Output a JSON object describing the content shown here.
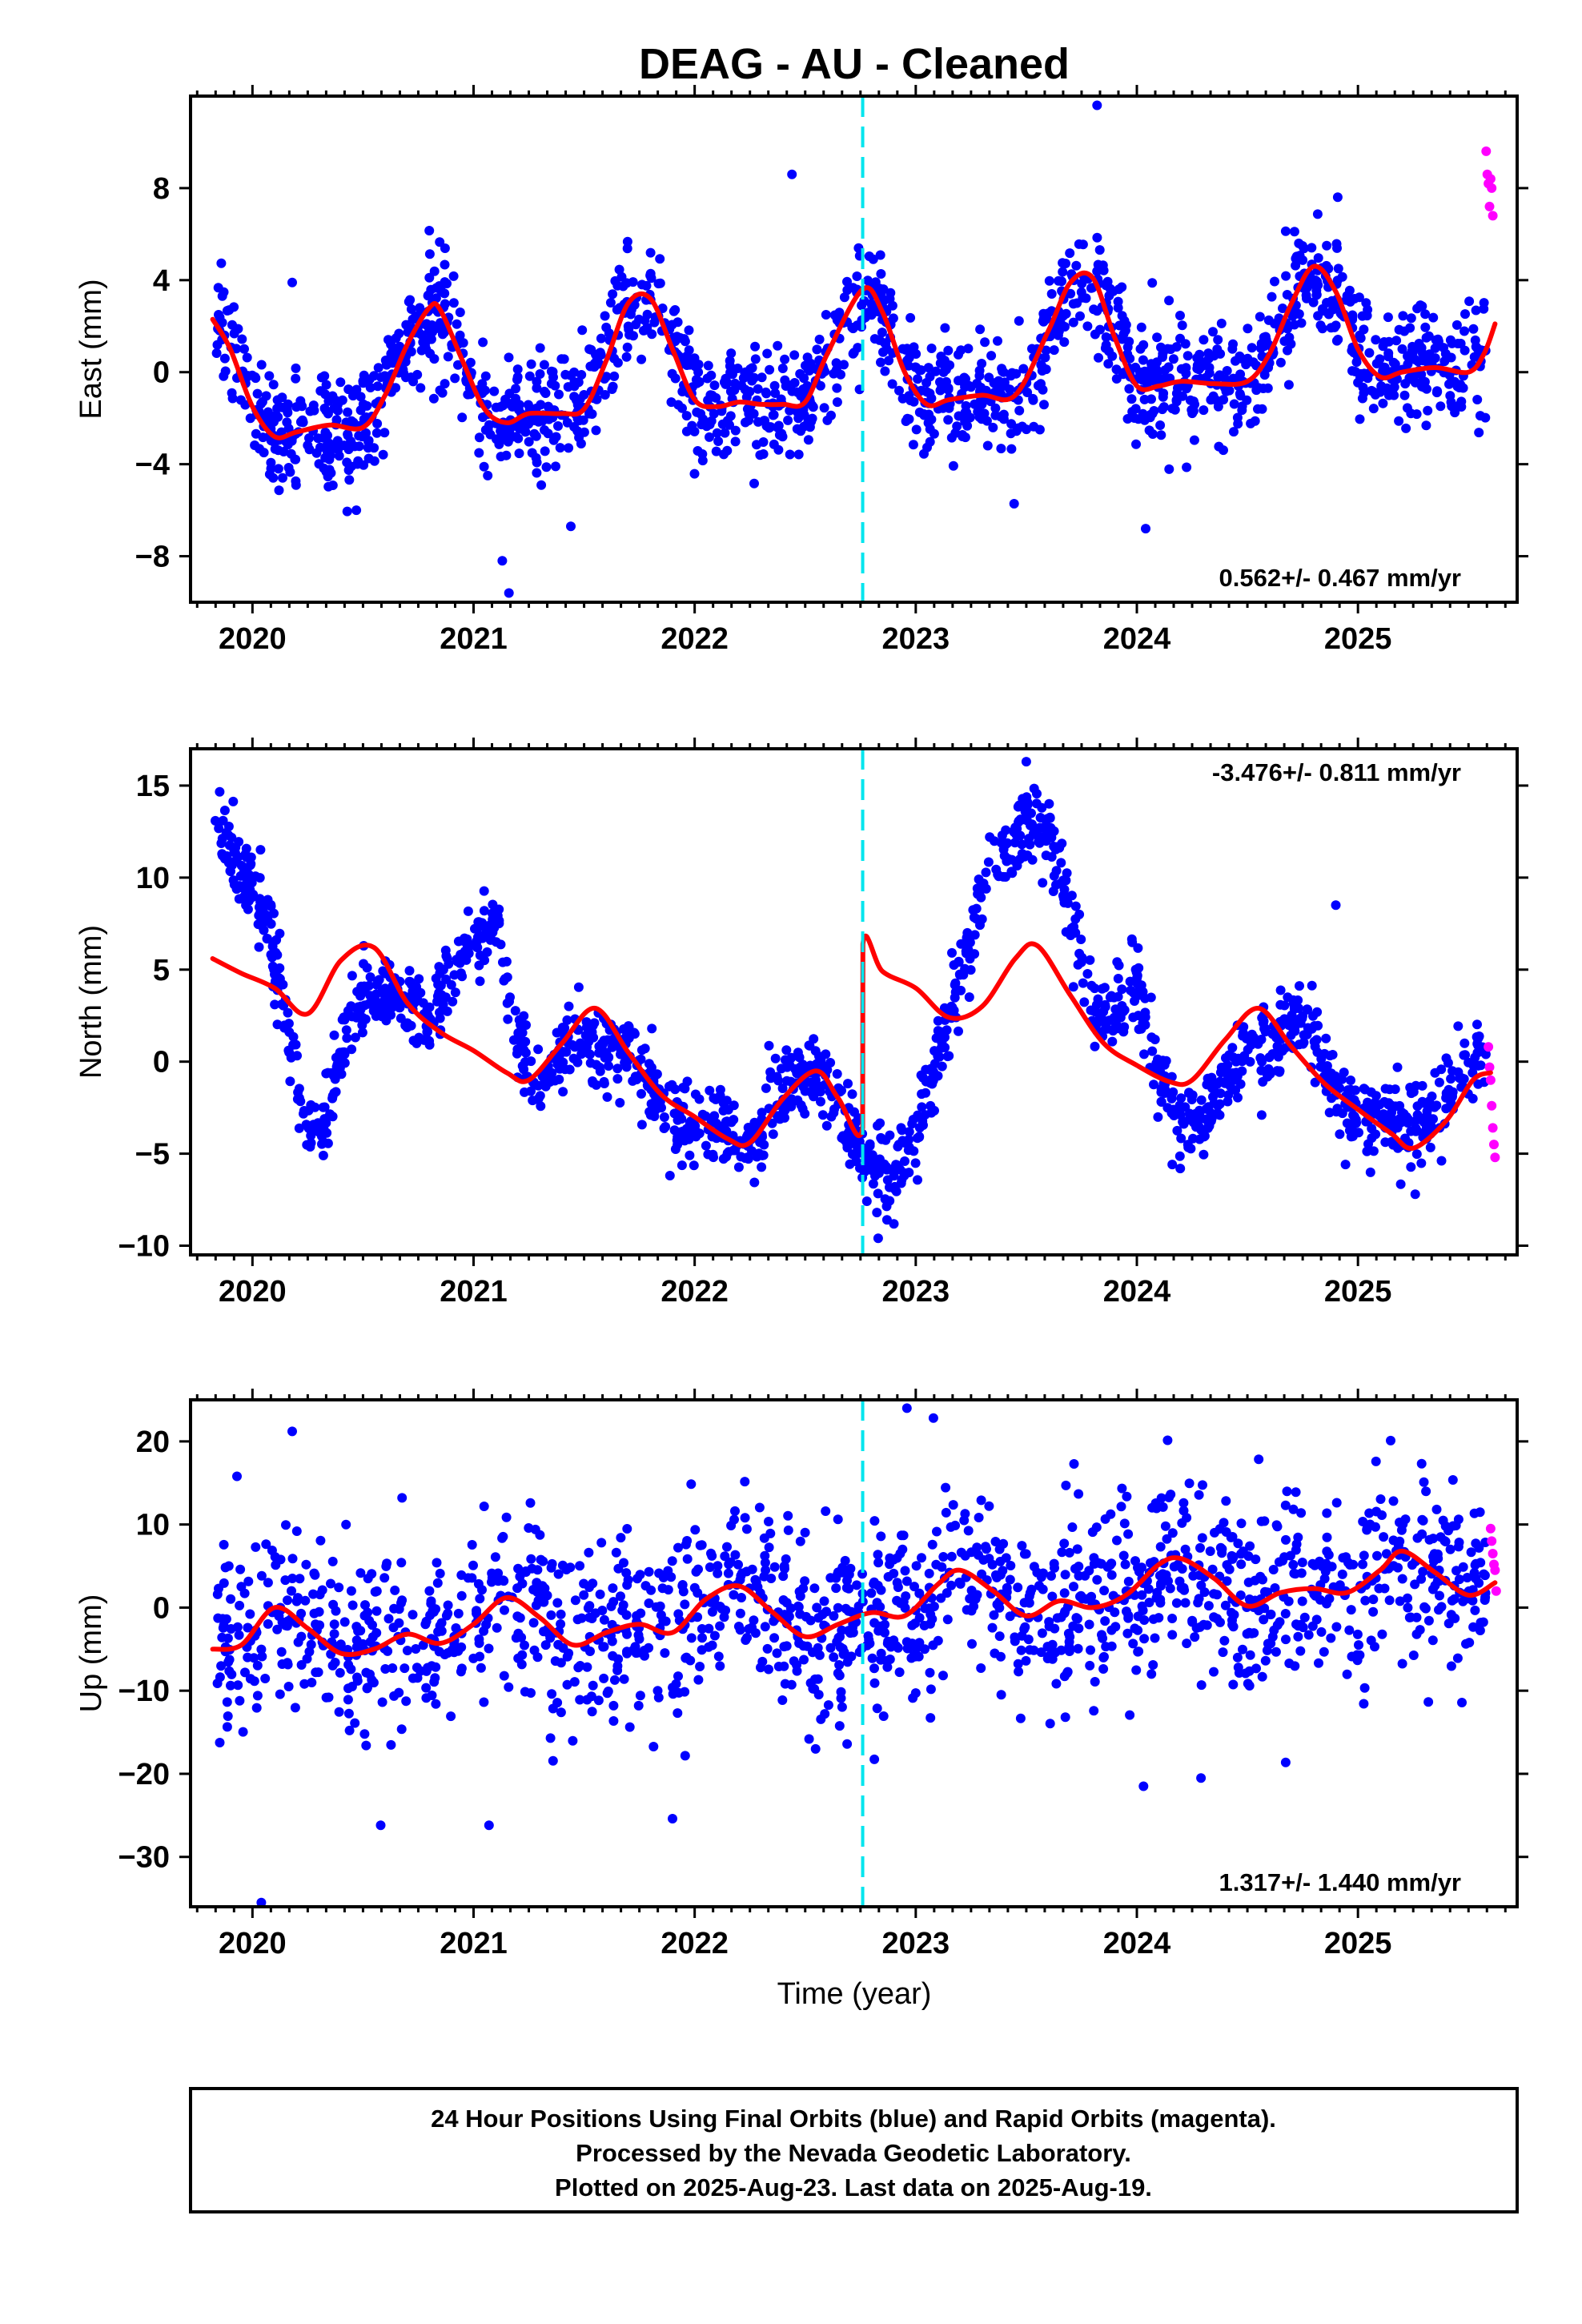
{
  "title": "DEAG  - AU - Cleaned",
  "x_axis_label": "Time (year)",
  "footer": {
    "line1": "24 Hour Positions Using Final Orbits (blue) and Rapid Orbits (magenta).",
    "line2": "Processed by the Nevada Geodetic Laboratory.",
    "line3": "Plotted on 2025-Aug-23. Last data on 2025-Aug-19."
  },
  "colors": {
    "final_orbits": "#0000ff",
    "rapid_orbits": "#ff00ff",
    "model_fit": "#ff0000",
    "event_line": "#00e5ee"
  },
  "chart_data": [
    {
      "type": "scatter",
      "panel": "east",
      "ylabel": "East (mm)",
      "xlim": [
        2019.72,
        2025.72
      ],
      "ylim": [
        -10,
        12
      ],
      "x_ticks": [
        2020,
        2021,
        2022,
        2023,
        2024,
        2025
      ],
      "y_ticks": [
        -8,
        -4,
        0,
        4,
        8
      ],
      "rate_text": "0.562+/- 0.467 mm/yr",
      "event_line_x": 2022.76,
      "model": {
        "x": [
          2019.82,
          2019.9,
          2020.0,
          2020.1,
          2020.2,
          2020.35,
          2020.5,
          2020.6,
          2020.7,
          2020.8,
          2020.85,
          2020.95,
          2021.05,
          2021.15,
          2021.25,
          2021.4,
          2021.5,
          2021.6,
          2021.7,
          2021.8,
          2021.9,
          2022.0,
          2022.1,
          2022.2,
          2022.3,
          2022.4,
          2022.5,
          2022.6,
          2022.76,
          2022.85,
          2022.95,
          2023.05,
          2023.15,
          2023.3,
          2023.45,
          2023.6,
          2023.7,
          2023.8,
          2023.9,
          2024.0,
          2024.1,
          2024.2,
          2024.35,
          2024.5,
          2024.6,
          2024.7,
          2024.8,
          2024.9,
          2025.0,
          2025.1,
          2025.2,
          2025.35,
          2025.5,
          2025.57,
          2025.62
        ],
        "y": [
          2.3,
          1.0,
          -1.5,
          -2.8,
          -2.6,
          -2.3,
          -2.4,
          -1.0,
          1.2,
          2.8,
          2.7,
          0.5,
          -1.6,
          -2.2,
          -1.8,
          -1.8,
          -1.6,
          0.5,
          3.0,
          3.2,
          1.0,
          -1.2,
          -1.5,
          -1.3,
          -1.4,
          -1.4,
          -1.3,
          0.8,
          3.6,
          2.6,
          0.0,
          -1.4,
          -1.2,
          -1.0,
          -1.0,
          1.8,
          3.9,
          4.1,
          1.5,
          -0.6,
          -0.6,
          -0.4,
          -0.5,
          -0.4,
          0.8,
          3.0,
          4.6,
          3.5,
          1.0,
          -0.2,
          0.0,
          0.2,
          0.0,
          0.8,
          2.1
        ]
      },
      "rapid": {
        "x": [
          2025.58,
          2025.585,
          2025.59,
          2025.595,
          2025.6,
          2025.605,
          2025.61
        ],
        "y": [
          9.6,
          8.6,
          8.2,
          7.2,
          8.4,
          8.0,
          6.8
        ]
      },
      "outliers": {
        "x": [
          2022.44,
          2023.82,
          2021.16,
          2021.13,
          2020.18,
          2020.47,
          2024.04,
          2021.44
        ],
        "y": [
          8.6,
          11.6,
          -9.6,
          -8.2,
          3.9,
          -6.0,
          -6.8,
          -6.7
        ]
      },
      "scatter_spread": 1.25,
      "scatter_count": 1700,
      "scatter_seed": 11
    },
    {
      "type": "scatter",
      "panel": "north",
      "ylabel": "North (mm)",
      "xlim": [
        2019.72,
        2025.72
      ],
      "ylim": [
        -10.5,
        17
      ],
      "x_ticks": [
        2020,
        2021,
        2022,
        2023,
        2024,
        2025
      ],
      "y_ticks": [
        -10,
        -5,
        0,
        5,
        10,
        15
      ],
      "rate_text": "-3.476+/- 0.811 mm/yr",
      "event_line_x": 2022.76,
      "model": {
        "x": [
          2019.82,
          2019.95,
          2020.1,
          2020.25,
          2020.4,
          2020.55,
          2020.7,
          2020.85,
          2021.0,
          2021.15,
          2021.25,
          2021.4,
          2021.55,
          2021.7,
          2021.85,
          2022.0,
          2022.15,
          2022.25,
          2022.4,
          2022.55,
          2022.65,
          2022.76,
          2022.761,
          2022.85,
          2023.0,
          2023.15,
          2023.3,
          2023.45,
          2023.55,
          2023.7,
          2023.85,
          2024.0,
          2024.15,
          2024.25,
          2024.4,
          2024.55,
          2024.7,
          2024.85,
          2025.0,
          2025.15,
          2025.25,
          2025.4,
          2025.52,
          2025.6
        ],
        "y": [
          5.6,
          4.8,
          4.0,
          2.6,
          5.5,
          6.2,
          3.2,
          1.6,
          0.6,
          -0.6,
          -1.0,
          1.0,
          2.9,
          0.5,
          -1.8,
          -3.0,
          -4.2,
          -4.4,
          -2.0,
          -0.5,
          -2.0,
          -3.6,
          6.4,
          4.9,
          4.0,
          2.4,
          3.0,
          5.6,
          6.3,
          3.6,
          1.0,
          -0.2,
          -1.1,
          -1.0,
          1.2,
          2.9,
          0.8,
          -1.2,
          -2.6,
          -3.9,
          -4.7,
          -3.2,
          -1.0,
          -0.6
        ]
      },
      "trend": {
        "x": [
          2019.85,
          2019.95,
          2020.05,
          2020.15,
          2020.22,
          2020.3,
          2020.4,
          2020.5,
          2020.6,
          2020.7,
          2020.8,
          2020.9,
          2021.0,
          2021.1,
          2021.2,
          2021.3,
          2021.4,
          2021.5,
          2021.6,
          2021.7,
          2021.8,
          2021.9,
          2022.0,
          2022.1,
          2022.2,
          2022.3,
          2022.4,
          2022.5,
          2022.6,
          2022.7,
          2022.8,
          2022.9,
          2023.0,
          2023.1,
          2023.2,
          2023.3,
          2023.4,
          2023.5,
          2023.6,
          2023.7,
          2023.8,
          2023.9,
          2024.0,
          2024.1,
          2024.2,
          2024.3,
          2024.4,
          2024.5,
          2024.6,
          2024.7,
          2024.8,
          2024.9,
          2025.0,
          2025.1,
          2025.2,
          2025.3,
          2025.4,
          2025.5,
          2025.57
        ],
        "y": [
          13.0,
          10.5,
          8.5,
          2.5,
          -2.5,
          -4.5,
          0.5,
          3.5,
          4.0,
          3.0,
          2.5,
          4.5,
          6.5,
          7.0,
          1.0,
          -1.5,
          0.5,
          1.5,
          0.5,
          0.5,
          -1.0,
          -3.0,
          -3.5,
          -3.5,
          -4.5,
          -4.0,
          -1.5,
          -0.5,
          -1.5,
          -4.0,
          -5.5,
          -6.5,
          -4.0,
          0.0,
          4.5,
          9.0,
          11.5,
          13.0,
          12.5,
          8.0,
          2.5,
          2.5,
          4.5,
          -1.0,
          -3.5,
          -3.0,
          -1.0,
          1.0,
          0.5,
          2.0,
          1.5,
          -2.0,
          -3.0,
          -3.0,
          -3.5,
          -3.5,
          -2.0,
          0.0,
          0.5
        ]
      },
      "rapid": {
        "x": [
          2025.59,
          2025.595,
          2025.6,
          2025.605,
          2025.61,
          2025.615,
          2025.62
        ],
        "y": [
          0.8,
          -0.3,
          -1.0,
          -2.4,
          -3.6,
          -4.5,
          -5.2
        ]
      },
      "outliers": {
        "x": [
          2022.83,
          2022.87,
          2024.9,
          2023.5
        ],
        "y": [
          -9.6,
          -8.6,
          8.5,
          16.3
        ]
      },
      "scatter_spread": 1.05,
      "scatter_count": 1700,
      "scatter_seed": 23
    },
    {
      "type": "scatter",
      "panel": "up",
      "ylabel": "Up (mm)",
      "xlim": [
        2019.72,
        2025.72
      ],
      "ylim": [
        -36,
        25
      ],
      "x_ticks": [
        2020,
        2021,
        2022,
        2023,
        2024,
        2025
      ],
      "y_ticks": [
        -30,
        -20,
        -10,
        0,
        10,
        20
      ],
      "rate_text": "1.317+/- 1.440 mm/yr",
      "event_line_x": 2022.76,
      "xlabel": "Time (year)",
      "model": {
        "x": [
          2019.82,
          2019.95,
          2020.1,
          2020.25,
          2020.4,
          2020.55,
          2020.7,
          2020.85,
          2021.0,
          2021.15,
          2021.3,
          2021.45,
          2021.6,
          2021.75,
          2021.9,
          2022.05,
          2022.2,
          2022.35,
          2022.5,
          2022.65,
          2022.8,
          2022.95,
          2023.1,
          2023.2,
          2023.35,
          2023.5,
          2023.65,
          2023.8,
          2023.95,
          2024.1,
          2024.2,
          2024.35,
          2024.5,
          2024.65,
          2024.8,
          2024.95,
          2025.1,
          2025.2,
          2025.35,
          2025.5,
          2025.62
        ],
        "y": [
          -5.0,
          -4.5,
          0.0,
          -2.5,
          -5.5,
          -5.0,
          -3.2,
          -4.3,
          -2.0,
          1.2,
          -1.2,
          -4.5,
          -3.0,
          -2.0,
          -3.0,
          1.0,
          2.6,
          -0.5,
          -3.5,
          -2.0,
          -0.6,
          -1.0,
          2.8,
          4.5,
          2.0,
          -1.0,
          0.8,
          0.0,
          1.5,
          5.2,
          5.9,
          3.5,
          0.2,
          1.8,
          2.3,
          1.8,
          4.5,
          6.8,
          4.2,
          1.5,
          3.0
        ]
      },
      "rapid": {
        "x": [
          2025.6,
          2025.605,
          2025.61,
          2025.615,
          2025.62,
          2025.625
        ],
        "y": [
          9.5,
          8.0,
          6.5,
          5.2,
          4.5,
          2.0
        ]
      },
      "outliers": {
        "x": [
          2020.04,
          2019.93,
          2020.18,
          2020.58,
          2021.07,
          2021.9,
          2022.96,
          2023.08,
          2024.03,
          2024.29
        ],
        "y": [
          -35.5,
          15.8,
          21.2,
          -26.2,
          -26.2,
          -25.4,
          24.0,
          22.8,
          -21.5,
          -20.5
        ]
      },
      "scatter_spread": 5.5,
      "scatter_count": 1500,
      "scatter_seed": 37
    }
  ]
}
